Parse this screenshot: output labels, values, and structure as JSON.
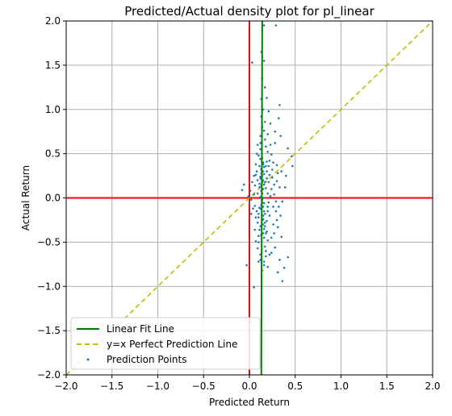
{
  "chart_data": {
    "type": "scatter",
    "title": "Predicted/Actual density plot for pl_linear",
    "xlabel": "Predicted Return",
    "ylabel": "Actual Return",
    "xlim": [
      -2.0,
      2.0
    ],
    "ylim": [
      -2.0,
      2.0
    ],
    "xticks": [
      "−2.0",
      "−1.5",
      "−1.0",
      "−0.5",
      "0.0",
      "0.5",
      "1.0",
      "1.5",
      "2.0"
    ],
    "yticks": [
      "−2.0",
      "−1.5",
      "−1.0",
      "−0.5",
      "0.0",
      "0.5",
      "1.0",
      "1.5",
      "2.0"
    ],
    "grid": true,
    "legend_position": "lower-left",
    "colors": {
      "points": "#1f77b4",
      "fit_line": "#008000",
      "perfect_line": "#bfbf00",
      "zero_lines": "#ff0000",
      "grid": "#b0b0b0"
    },
    "series": [
      {
        "name": "Linear Fit Line",
        "kind": "vertical-line",
        "x": [
          0.13,
          0.14
        ],
        "y": [
          -2.0,
          2.0
        ]
      },
      {
        "name": "y=x Perfect Prediction Line",
        "kind": "dashed-line",
        "x": [
          -2.0,
          2.0
        ],
        "y": [
          -2.0,
          2.0
        ]
      },
      {
        "name": "Prediction Points",
        "kind": "points",
        "points": [
          [
            0.16,
            1.95
          ],
          [
            0.29,
            1.95
          ],
          [
            0.03,
            1.53
          ],
          [
            0.13,
            1.65
          ],
          [
            0.16,
            1.55
          ],
          [
            0.14,
            1.35
          ],
          [
            0.17,
            1.25
          ],
          [
            0.13,
            1.12
          ],
          [
            0.19,
            1.13
          ],
          [
            0.33,
            1.05
          ],
          [
            0.32,
            0.9
          ],
          [
            0.28,
            0.75
          ],
          [
            0.34,
            0.7
          ],
          [
            0.23,
            0.6
          ],
          [
            0.42,
            0.56
          ],
          [
            0.46,
            0.47
          ],
          [
            0.47,
            0.36
          ],
          [
            0.4,
            0.25
          ],
          [
            0.39,
            0.12
          ],
          [
            0.22,
            0.42
          ],
          [
            0.25,
            0.32
          ],
          [
            0.3,
            0.19
          ],
          [
            0.36,
            -0.04
          ],
          [
            0.34,
            -0.2
          ],
          [
            0.31,
            -0.33
          ],
          [
            0.35,
            -0.44
          ],
          [
            0.28,
            -0.56
          ],
          [
            0.24,
            -0.62
          ],
          [
            0.33,
            -0.7
          ],
          [
            0.42,
            -0.67
          ],
          [
            0.38,
            -0.79
          ],
          [
            0.31,
            -0.84
          ],
          [
            0.36,
            -0.94
          ],
          [
            0.05,
            -1.01
          ],
          [
            0.2,
            -0.78
          ],
          [
            0.16,
            -0.72
          ],
          [
            0.18,
            -0.66
          ],
          [
            0.12,
            -0.64
          ],
          [
            0.1,
            -0.72
          ],
          [
            -0.03,
            -0.76
          ],
          [
            0.09,
            -0.57
          ],
          [
            0.1,
            -0.43
          ],
          [
            0.12,
            -0.32
          ],
          [
            0.1,
            -0.22
          ],
          [
            0.11,
            -0.11
          ],
          [
            0.12,
            0.01
          ],
          [
            0.11,
            0.12
          ],
          [
            0.12,
            0.22
          ],
          [
            0.13,
            0.33
          ],
          [
            0.12,
            0.44
          ],
          [
            0.12,
            0.55
          ],
          [
            0.12,
            0.62
          ],
          [
            0.17,
            0.66
          ],
          [
            0.2,
            0.72
          ],
          [
            0.14,
            0.8
          ],
          [
            0.17,
            0.86
          ],
          [
            0.21,
            0.98
          ],
          [
            0.19,
            0.41
          ],
          [
            0.2,
            0.52
          ],
          [
            0.19,
            0.3
          ],
          [
            0.21,
            0.18
          ],
          [
            0.2,
            0.05
          ],
          [
            0.21,
            -0.05
          ],
          [
            0.2,
            -0.15
          ],
          [
            0.19,
            -0.26
          ],
          [
            0.19,
            -0.38
          ],
          [
            0.2,
            -0.48
          ],
          [
            0.17,
            -0.55
          ],
          [
            0.07,
            -0.49
          ],
          [
            0.06,
            -0.36
          ],
          [
            0.07,
            -0.22
          ],
          [
            0.06,
            -0.09
          ],
          [
            0.05,
            0.04
          ],
          [
            0.06,
            0.14
          ],
          [
            0.07,
            0.26
          ],
          [
            0.07,
            0.38
          ],
          [
            0.08,
            0.5
          ],
          [
            0.09,
            0.6
          ],
          [
            0.01,
            0.08
          ],
          [
            -0.01,
            0.02
          ],
          [
            0.0,
            -0.05
          ],
          [
            0.02,
            -0.02
          ],
          [
            -0.08,
            0.09
          ],
          [
            -0.06,
            0.15
          ],
          [
            0.27,
            0.04
          ],
          [
            0.26,
            -0.1
          ],
          [
            0.25,
            0.23
          ],
          [
            0.24,
            0.49
          ],
          [
            0.26,
            -0.3
          ],
          [
            0.24,
            -0.45
          ],
          [
            0.28,
            0.62
          ],
          [
            0.23,
            0.84
          ],
          [
            0.22,
            -0.64
          ],
          [
            0.3,
            0.37
          ],
          [
            0.29,
            -0.15
          ],
          [
            0.15,
            0.1
          ],
          [
            0.15,
            0.2
          ],
          [
            0.15,
            0.3
          ],
          [
            0.15,
            0.4
          ],
          [
            0.15,
            -0.1
          ],
          [
            0.15,
            -0.2
          ],
          [
            0.15,
            -0.3
          ],
          [
            0.15,
            -0.4
          ],
          [
            0.15,
            0.0
          ],
          [
            0.14,
            0.05
          ],
          [
            0.16,
            0.15
          ],
          [
            0.14,
            0.25
          ],
          [
            0.16,
            0.35
          ],
          [
            0.14,
            -0.05
          ],
          [
            0.16,
            -0.15
          ],
          [
            0.14,
            -0.25
          ],
          [
            0.16,
            -0.35
          ],
          [
            0.14,
            0.45
          ],
          [
            0.16,
            -0.45
          ],
          [
            0.13,
            0.08
          ],
          [
            0.17,
            0.18
          ],
          [
            0.13,
            -0.08
          ],
          [
            0.17,
            -0.18
          ],
          [
            0.13,
            0.28
          ],
          [
            0.17,
            -0.28
          ],
          [
            0.11,
            0.36
          ],
          [
            0.18,
            0.36
          ],
          [
            0.11,
            -0.36
          ],
          [
            0.18,
            -0.4
          ],
          [
            0.1,
            0.48
          ],
          [
            0.18,
            0.58
          ],
          [
            0.1,
            -0.5
          ],
          [
            0.18,
            -0.6
          ],
          [
            0.12,
            0.7
          ],
          [
            0.16,
            0.76
          ],
          [
            0.12,
            -0.7
          ],
          [
            0.16,
            -0.76
          ],
          [
            0.13,
            0.92
          ],
          [
            0.15,
            1.0
          ],
          [
            0.14,
            -0.82
          ],
          [
            0.09,
            0.2
          ],
          [
            0.09,
            -0.28
          ],
          [
            0.22,
            0.26
          ],
          [
            0.22,
            -0.2
          ],
          [
            0.23,
            0.02
          ],
          [
            0.08,
            0.3
          ],
          [
            0.08,
            -0.15
          ],
          [
            0.24,
            0.1
          ],
          [
            0.09,
            0.05
          ],
          [
            0.21,
            0.36
          ],
          [
            0.13,
            0.14
          ],
          [
            0.14,
            0.18
          ],
          [
            0.12,
            0.24
          ],
          [
            0.16,
            0.27
          ],
          [
            0.13,
            0.32
          ],
          [
            0.15,
            0.38
          ],
          [
            0.14,
            -0.02
          ],
          [
            0.16,
            -0.06
          ],
          [
            0.12,
            -0.12
          ],
          [
            0.15,
            -0.24
          ],
          [
            0.17,
            -0.32
          ],
          [
            0.13,
            -0.42
          ],
          [
            0.18,
            0.11
          ],
          [
            0.11,
            0.16
          ],
          [
            0.19,
            0.22
          ],
          [
            0.1,
            -0.18
          ],
          [
            0.2,
            -0.1
          ],
          [
            0.27,
            0.15
          ],
          [
            0.31,
            0.28
          ],
          [
            0.26,
            0.4
          ],
          [
            0.05,
            0.25
          ],
          [
            0.04,
            -0.12
          ],
          [
            0.29,
            -0.04
          ],
          [
            0.3,
            -0.25
          ],
          [
            0.27,
            -0.4
          ],
          [
            0.03,
            0.18
          ],
          [
            0.02,
            -0.18
          ],
          [
            0.33,
            0.12
          ],
          [
            0.35,
            0.3
          ],
          [
            0.32,
            -0.1
          ]
        ]
      }
    ]
  }
}
